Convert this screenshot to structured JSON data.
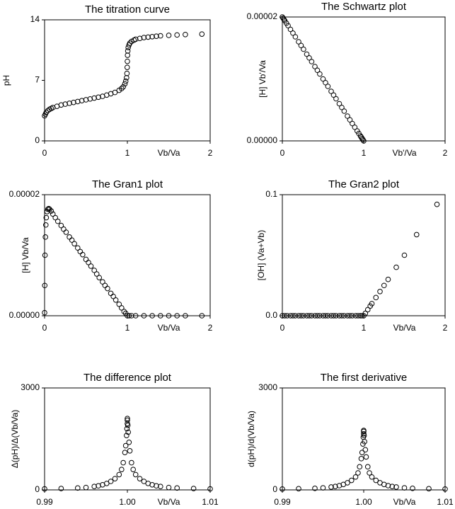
{
  "chart_data": [
    {
      "type": "scatter",
      "title": "The titration curve",
      "x_label": "Vb/Va",
      "y_label": "pH",
      "x": [
        0,
        0.01,
        0.02,
        0.04,
        0.06,
        0.08,
        0.1,
        0.15,
        0.2,
        0.25,
        0.3,
        0.35,
        0.4,
        0.45,
        0.5,
        0.55,
        0.6,
        0.65,
        0.7,
        0.75,
        0.8,
        0.85,
        0.9,
        0.93,
        0.95,
        0.97,
        0.98,
        0.99,
        0.995,
        0.998,
        1,
        1.002,
        1.005,
        1.01,
        1.02,
        1.03,
        1.05,
        1.08,
        1.1,
        1.15,
        1.2,
        1.25,
        1.3,
        1.35,
        1.4,
        1.5,
        1.6,
        1.7,
        1.9
      ],
      "values": [
        2.9,
        3.1,
        3.3,
        3.5,
        3.65,
        3.75,
        3.85,
        4.0,
        4.15,
        4.25,
        4.35,
        4.45,
        4.55,
        4.65,
        4.75,
        4.85,
        4.95,
        5.05,
        5.15,
        5.3,
        5.45,
        5.6,
        5.85,
        6.05,
        6.25,
        6.6,
        6.9,
        7.3,
        7.8,
        8.5,
        9.2,
        9.9,
        10.4,
        10.8,
        11.1,
        11.3,
        11.5,
        11.65,
        11.75,
        11.85,
        11.95,
        12.0,
        12.05,
        12.1,
        12.15,
        12.2,
        12.25,
        12.3,
        12.35
      ],
      "xlim": [
        0,
        2
      ],
      "xticks": [
        0,
        1,
        2
      ],
      "ylim": [
        0,
        14
      ],
      "yticks": [
        0,
        7,
        14
      ],
      "color": "#000000"
    },
    {
      "type": "scatter",
      "title": "The Schwartz plot",
      "x_label": "Vb'/Va",
      "y_label": "[H] Vb'/Va",
      "x": [
        0,
        0.01,
        0.02,
        0.03,
        0.05,
        0.07,
        0.1,
        0.13,
        0.16,
        0.2,
        0.23,
        0.26,
        0.3,
        0.33,
        0.36,
        0.4,
        0.43,
        0.46,
        0.5,
        0.53,
        0.56,
        0.6,
        0.63,
        0.66,
        0.7,
        0.73,
        0.76,
        0.8,
        0.83,
        0.86,
        0.89,
        0.92,
        0.94,
        0.96,
        0.97,
        0.98,
        0.99,
        1
      ],
      "values": [
        2e-05,
        1.98e-05,
        1.96e-05,
        1.94e-05,
        1.9e-05,
        1.86e-05,
        1.8e-05,
        1.74e-05,
        1.68e-05,
        1.6e-05,
        1.54e-05,
        1.48e-05,
        1.4e-05,
        1.34e-05,
        1.28e-05,
        1.2e-05,
        1.14e-05,
        1.08e-05,
        1e-05,
        9.4e-06,
        8.8e-06,
        8e-06,
        7.4e-06,
        6.8e-06,
        6e-06,
        5.4e-06,
        4.8e-06,
        4e-06,
        3.4e-06,
        2.8e-06,
        2.2e-06,
        1.6e-06,
        1.2e-06,
        8e-07,
        6e-07,
        4e-07,
        2e-07,
        0
      ],
      "xlim": [
        0,
        2
      ],
      "xticks": [
        0,
        1,
        2
      ],
      "ylim": [
        0,
        2e-05
      ],
      "yticks": [
        {
          "value": 0,
          "label": "0.00000"
        },
        {
          "value": 2e-05,
          "label": "0.00002"
        }
      ],
      "color": "#000000"
    },
    {
      "type": "scatter",
      "title": "The Gran1 plot",
      "x_label": "Vb/Va",
      "y_label": "[H] Vb/Va",
      "x": [
        0,
        0.002,
        0.005,
        0.01,
        0.015,
        0.02,
        0.03,
        0.04,
        0.05,
        0.06,
        0.08,
        0.1,
        0.13,
        0.16,
        0.2,
        0.23,
        0.26,
        0.3,
        0.33,
        0.36,
        0.4,
        0.43,
        0.46,
        0.5,
        0.53,
        0.56,
        0.6,
        0.63,
        0.66,
        0.7,
        0.73,
        0.76,
        0.8,
        0.83,
        0.86,
        0.9,
        0.93,
        0.96,
        0.98,
        1,
        1.02,
        1.05,
        1.1,
        1.2,
        1.3,
        1.4,
        1.5,
        1.6,
        1.7,
        1.9
      ],
      "values": [
        5e-07,
        5e-06,
        1e-05,
        1.3e-05,
        1.5e-05,
        1.62e-05,
        1.72e-05,
        1.76e-05,
        1.77e-05,
        1.76e-05,
        1.73e-05,
        1.68e-05,
        1.62e-05,
        1.56e-05,
        1.49e-05,
        1.43e-05,
        1.38e-05,
        1.3e-05,
        1.25e-05,
        1.19e-05,
        1.12e-05,
        1.06e-05,
        1.01e-05,
        9.3e-06,
        8.8e-06,
        8.2e-06,
        7.5e-06,
        6.9e-06,
        6.3e-06,
        5.6e-06,
        5e-06,
        4.5e-06,
        3.7e-06,
        3.2e-06,
        2.6e-06,
        1.9e-06,
        1.3e-06,
        7e-07,
        4e-07,
        0,
        0,
        0,
        0,
        0,
        0,
        0,
        0,
        0,
        0,
        0
      ],
      "xlim": [
        0,
        2
      ],
      "xticks": [
        0,
        1,
        2
      ],
      "ylim": [
        0,
        2e-05
      ],
      "yticks": [
        {
          "value": 0,
          "label": "0.00000"
        },
        {
          "value": 2e-05,
          "label": "0.00002"
        }
      ],
      "color": "#000000"
    },
    {
      "type": "scatter",
      "title": "The Gran2 plot",
      "x_label": "Vb/Va",
      "y_label": "[OH] (Va+Vb)",
      "x": [
        0,
        0.03,
        0.06,
        0.1,
        0.13,
        0.16,
        0.2,
        0.23,
        0.26,
        0.3,
        0.33,
        0.36,
        0.4,
        0.43,
        0.46,
        0.5,
        0.53,
        0.56,
        0.6,
        0.63,
        0.66,
        0.7,
        0.73,
        0.76,
        0.8,
        0.83,
        0.86,
        0.9,
        0.93,
        0.96,
        0.98,
        1,
        1.02,
        1.05,
        1.08,
        1.1,
        1.15,
        1.2,
        1.25,
        1.3,
        1.4,
        1.5,
        1.65,
        1.9
      ],
      "values": [
        0,
        0,
        0,
        0,
        0,
        0,
        0,
        0,
        0,
        0,
        0,
        0,
        0,
        0,
        0,
        0,
        0,
        0,
        0,
        0,
        0,
        0,
        0,
        0,
        0,
        0,
        0,
        0,
        0,
        0,
        0,
        0,
        0.002,
        0.005,
        0.008,
        0.01,
        0.015,
        0.02,
        0.025,
        0.03,
        0.04,
        0.05,
        0.067,
        0.092
      ],
      "xlim": [
        0,
        2
      ],
      "xticks": [
        0,
        1,
        2
      ],
      "ylim": [
        0,
        0.1
      ],
      "yticks": [
        {
          "value": 0,
          "label": "0.0"
        },
        {
          "value": 0.1,
          "label": "0.1"
        }
      ],
      "color": "#000000"
    },
    {
      "type": "scatter",
      "title": "The difference plot",
      "x_label": "Vb/Va",
      "y_label": "Δ(pH)/Δ(Vb/Va)",
      "x": [
        0.99,
        0.992,
        0.994,
        0.995,
        0.996,
        0.9965,
        0.997,
        0.9975,
        0.998,
        0.9985,
        0.999,
        0.9993,
        0.9995,
        0.9997,
        0.9998,
        0.9999,
        0.99995,
        1,
        1,
        1,
        1.00005,
        1.0001,
        1.0002,
        1.0003,
        1.0005,
        1.0007,
        1.001,
        1.0015,
        1.002,
        1.0025,
        1.003,
        1.0035,
        1.004,
        1.005,
        1.006,
        1.008,
        1.01
      ],
      "values": [
        30,
        40,
        55,
        70,
        100,
        120,
        150,
        190,
        250,
        330,
        450,
        600,
        800,
        1100,
        1300,
        1600,
        1800,
        1950,
        2050,
        2100,
        1900,
        1700,
        1400,
        1150,
        800,
        600,
        450,
        330,
        250,
        190,
        150,
        120,
        100,
        70,
        55,
        40,
        30
      ],
      "xlim": [
        0.99,
        1.01
      ],
      "xticks": [
        0.99,
        {
          "value": 1,
          "label": "1.00"
        },
        1.01
      ],
      "ylim": [
        0,
        3000
      ],
      "yticks": [
        0,
        3000
      ],
      "color": "#000000"
    },
    {
      "type": "scatter",
      "title": "The first derivative",
      "x_label": "Vb/Va",
      "y_label": "d(pH)/d(Vb/Va)",
      "x": [
        0.99,
        0.992,
        0.994,
        0.995,
        0.996,
        0.9965,
        0.997,
        0.9975,
        0.998,
        0.9985,
        0.999,
        0.9993,
        0.9995,
        0.9997,
        0.9998,
        0.9999,
        0.99995,
        1,
        1,
        1,
        1.00005,
        1.0001,
        1.0002,
        1.0003,
        1.0005,
        1.0007,
        1.001,
        1.0015,
        1.002,
        1.0025,
        1.003,
        1.0035,
        1.004,
        1.005,
        1.006,
        1.008,
        1.01
      ],
      "values": [
        25,
        35,
        45,
        60,
        85,
        100,
        125,
        160,
        210,
        280,
        380,
        500,
        680,
        920,
        1100,
        1350,
        1550,
        1650,
        1720,
        1750,
        1600,
        1420,
        1180,
        970,
        680,
        500,
        380,
        280,
        210,
        160,
        125,
        100,
        85,
        60,
        45,
        35,
        25
      ],
      "xlim": [
        0.99,
        1.01
      ],
      "xticks": [
        0.99,
        {
          "value": 1,
          "label": "1.00"
        },
        1.01
      ],
      "ylim": [
        0,
        3000
      ],
      "yticks": [
        0,
        3000
      ],
      "color": "#000000"
    }
  ]
}
